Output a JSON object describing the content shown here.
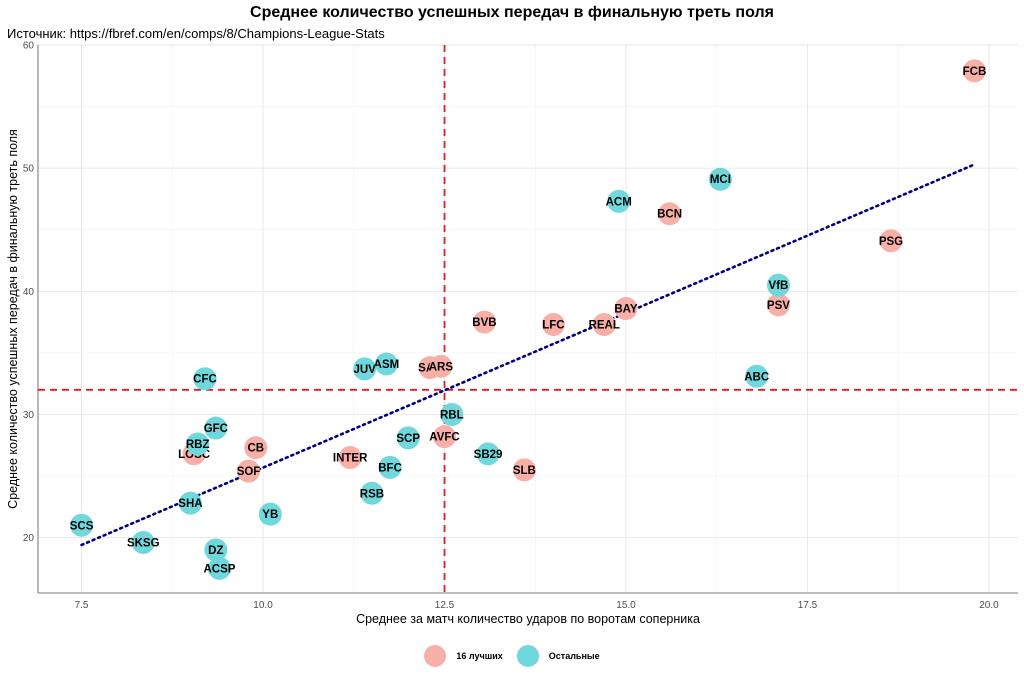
{
  "colors": {
    "top16": "#F8AFA8",
    "others": "#6FD8DC",
    "ref_line": "#E41A1C",
    "trend": "#000080"
  },
  "chart_data": {
    "type": "scatter",
    "title": "Среднее количество успешных передач в финальную треть поля",
    "subtitle": "Источник: https://fbref.com/en/comps/8/Champions-League-Stats",
    "xlabel": "Среднее за матч количество ударов по воротам соперника",
    "ylabel": "Среднее количество успешных передач в финальную треть поля",
    "xlim": [
      6.9,
      20.4
    ],
    "ylim": [
      15.5,
      60
    ],
    "x_ticks": [
      "7.5",
      "10.0",
      "12.5",
      "15.0",
      "17.5",
      "20.0"
    ],
    "y_ticks": [
      "20",
      "30",
      "40",
      "50",
      "60"
    ],
    "x_tick_values": [
      7.5,
      10.0,
      12.5,
      15.0,
      17.5,
      20.0
    ],
    "y_tick_values": [
      20,
      30,
      40,
      50,
      60
    ],
    "vline": 12.5,
    "hline": 32,
    "trend": {
      "x": [
        7.5,
        19.8
      ],
      "y": [
        19.4,
        50.3
      ]
    },
    "legend_position": "bottom",
    "legend": [
      {
        "group": "top16",
        "label": "16 лучших"
      },
      {
        "group": "others",
        "label": "Остальные"
      }
    ],
    "points": [
      {
        "label": "FCB",
        "x": 19.8,
        "y": 57.9,
        "group": "top16"
      },
      {
        "label": "PSG",
        "x": 18.65,
        "y": 44.1,
        "group": "top16"
      },
      {
        "label": "BCN",
        "x": 15.6,
        "y": 46.3,
        "group": "top16"
      },
      {
        "label": "PSV",
        "x": 17.1,
        "y": 38.9,
        "group": "top16"
      },
      {
        "label": "BAY",
        "x": 15.0,
        "y": 38.6,
        "group": "top16"
      },
      {
        "label": "REAL",
        "x": 14.7,
        "y": 37.3,
        "group": "top16"
      },
      {
        "label": "LFC",
        "x": 14.0,
        "y": 37.3,
        "group": "top16"
      },
      {
        "label": "BVB",
        "x": 13.05,
        "y": 37.5,
        "group": "top16"
      },
      {
        "label": "SAP",
        "x": 12.3,
        "y": 33.8,
        "group": "top16"
      },
      {
        "label": "ARS",
        "x": 12.45,
        "y": 33.9,
        "group": "top16"
      },
      {
        "label": "AVFC",
        "x": 12.5,
        "y": 28.2,
        "group": "top16"
      },
      {
        "label": "SLB",
        "x": 13.6,
        "y": 25.5,
        "group": "top16"
      },
      {
        "label": "INTER",
        "x": 11.2,
        "y": 26.5,
        "group": "top16"
      },
      {
        "label": "CB",
        "x": 9.9,
        "y": 27.3,
        "group": "top16"
      },
      {
        "label": "SOF",
        "x": 9.8,
        "y": 25.4,
        "group": "top16"
      },
      {
        "label": "LOSC",
        "x": 9.05,
        "y": 26.8,
        "group": "top16"
      },
      {
        "label": "MCI",
        "x": 16.3,
        "y": 49.1,
        "group": "others"
      },
      {
        "label": "ACM",
        "x": 14.9,
        "y": 47.3,
        "group": "others"
      },
      {
        "label": "VfB",
        "x": 17.1,
        "y": 40.5,
        "group": "others"
      },
      {
        "label": "ABC",
        "x": 16.8,
        "y": 33.1,
        "group": "others"
      },
      {
        "label": "ASM",
        "x": 11.7,
        "y": 34.1,
        "group": "others"
      },
      {
        "label": "JUV",
        "x": 11.4,
        "y": 33.7,
        "group": "others"
      },
      {
        "label": "CFC",
        "x": 9.2,
        "y": 32.9,
        "group": "others"
      },
      {
        "label": "RBL",
        "x": 12.6,
        "y": 30.0,
        "group": "others"
      },
      {
        "label": "SCP",
        "x": 12.0,
        "y": 28.1,
        "group": "others"
      },
      {
        "label": "SB29",
        "x": 13.1,
        "y": 26.8,
        "group": "others"
      },
      {
        "label": "BFC",
        "x": 11.75,
        "y": 25.7,
        "group": "others"
      },
      {
        "label": "RSB",
        "x": 11.5,
        "y": 23.6,
        "group": "others"
      },
      {
        "label": "GFC",
        "x": 9.35,
        "y": 28.9,
        "group": "others"
      },
      {
        "label": "RBZ",
        "x": 9.1,
        "y": 27.6,
        "group": "others"
      },
      {
        "label": "SHA",
        "x": 9.0,
        "y": 22.8,
        "group": "others"
      },
      {
        "label": "YB",
        "x": 10.1,
        "y": 21.9,
        "group": "others"
      },
      {
        "label": "SCS",
        "x": 7.5,
        "y": 21.0,
        "group": "others"
      },
      {
        "label": "SKSG",
        "x": 8.35,
        "y": 19.6,
        "group": "others"
      },
      {
        "label": "DZ",
        "x": 9.35,
        "y": 19.0,
        "group": "others"
      },
      {
        "label": "ACSP",
        "x": 9.4,
        "y": 17.5,
        "group": "others"
      }
    ]
  }
}
